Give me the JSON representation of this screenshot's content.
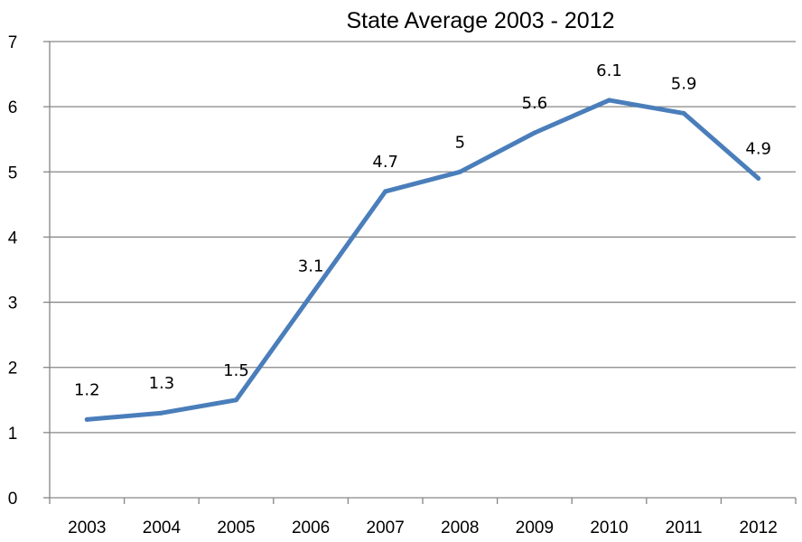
{
  "chart_data": {
    "type": "line",
    "title": "State Average 2003 - 2012",
    "xlabel": "",
    "ylabel": "",
    "categories": [
      "2003",
      "2004",
      "2005",
      "2006",
      "2007",
      "2008",
      "2009",
      "2010",
      "2011",
      "2012"
    ],
    "series": [
      {
        "values": [
          1.2,
          1.3,
          1.5,
          3.1,
          4.7,
          5,
          5.6,
          6.1,
          5.9,
          4.9
        ],
        "labels": [
          "1.2",
          "1.3",
          "1.5",
          "3.1",
          "4.7",
          "5",
          "5.6",
          "6.1",
          "5.9",
          "4.9"
        ],
        "color": "#4a7ebb"
      }
    ],
    "ylim": [
      0,
      7
    ],
    "yticks": [
      "0",
      "1",
      "2",
      "3",
      "4",
      "5",
      "6",
      "7"
    ],
    "grid": true,
    "legend": "none"
  }
}
